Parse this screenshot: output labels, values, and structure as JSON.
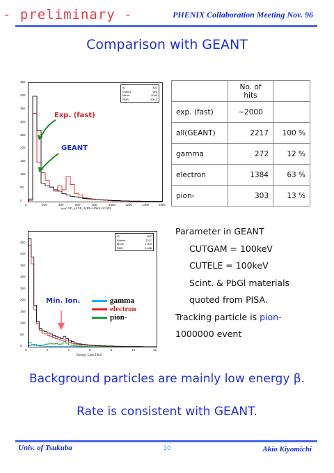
{
  "header": {
    "preliminary": "- preliminary -",
    "meeting": "PHENIX Collaboration Meeting  Nov. 96",
    "colors": {
      "accent": "#1f2fd6",
      "prelim": "#e8384e",
      "rule": "#4a66e8"
    }
  },
  "title": "Comparison with GEANT",
  "chart_data": [
    {
      "type": "bar",
      "title": "",
      "xlabel": "eyeCAD_xAXE_A(ID=2:PbGl:GCOP)",
      "ylabel": "",
      "xlim": [
        0,
        1600
      ],
      "ylim": [
        0,
        450
      ],
      "x_ticks": [
        "0",
        "200",
        "400",
        "600",
        "800",
        "1000",
        "1200",
        "1400",
        "1600"
      ],
      "y_ticks": [
        "0",
        "50",
        "100",
        "150",
        "200",
        "250",
        "300",
        "350",
        "400",
        "450"
      ],
      "stats": [
        [
          "ID",
          "402"
        ],
        [
          "Entries",
          "996"
        ],
        [
          "Mean",
          "2000"
        ],
        [
          "RMS",
          "205.2"
        ]
      ],
      "annotations": [
        "Exp. (fast)",
        "GEANT"
      ],
      "series": [
        {
          "name": "",
          "color": "#e02020",
          "bin_width": 50,
          "values": [
            5,
            335,
            150,
            110,
            80,
            55,
            40,
            60,
            45,
            95,
            65,
            30,
            25,
            15,
            12,
            10,
            8,
            6,
            5,
            4,
            3,
            3,
            2,
            2,
            1,
            1,
            1,
            0,
            1,
            0,
            0,
            0
          ]
        },
        {
          "name": "",
          "color": "#111111",
          "bin_width": 50,
          "values": [
            10,
            400,
            270,
            70,
            60,
            55,
            45,
            40,
            30,
            25,
            20,
            18,
            15,
            12,
            10,
            9,
            8,
            7,
            6,
            5,
            4,
            4,
            3,
            3,
            2,
            2,
            2,
            1,
            1,
            1,
            1,
            1
          ]
        }
      ]
    },
    {
      "type": "bar",
      "title": "",
      "xlabel": "Energy Loss  10e2",
      "ylabel": "",
      "xlim": [
        0,
        12
      ],
      "ylim": [
        0,
        500
      ],
      "x_ticks": [
        "0",
        "2",
        "4",
        "6",
        "8",
        "10",
        "12"
      ],
      "y_ticks": [
        "0",
        "50",
        "100",
        "150",
        "200",
        "250",
        "300",
        "350",
        "400",
        "450"
      ],
      "stats": [
        [
          "ID",
          "602"
        ],
        [
          "Entries",
          "2217"
        ],
        [
          "Mean",
          "1.909"
        ],
        [
          "RMS",
          "2.468"
        ]
      ],
      "annotations": [
        "Min. Ion."
      ],
      "series": [
        {
          "name": "gamma",
          "color": "#22aaff",
          "bin_width": 0.25,
          "values": [
            20,
            10,
            5,
            4,
            3,
            3,
            2,
            2,
            2,
            2,
            1,
            1,
            1,
            1,
            1,
            1,
            1,
            1,
            1,
            0,
            0,
            0,
            0,
            0,
            0,
            0,
            0,
            0,
            0,
            0,
            0,
            0,
            0,
            0,
            0,
            0,
            0,
            0,
            0,
            0,
            0,
            0,
            0,
            0,
            0,
            0,
            0,
            0
          ]
        },
        {
          "name": "electron",
          "color": "#e02020",
          "bin_width": 0.25,
          "values": [
            440,
            360,
            160,
            100,
            70,
            60,
            55,
            50,
            45,
            40,
            35,
            30,
            28,
            30,
            25,
            20,
            15,
            12,
            10,
            9,
            8,
            7,
            6,
            5,
            5,
            4,
            4,
            3,
            3,
            3,
            2,
            2,
            2,
            2,
            1,
            1,
            1,
            1,
            1,
            1,
            1,
            1,
            0,
            0,
            0,
            0,
            0,
            0
          ]
        },
        {
          "name": "pion-",
          "color": "#18a040",
          "bin_width": 0.25,
          "values": [
            5,
            8,
            10,
            8,
            6,
            8,
            10,
            12,
            15,
            12,
            14,
            10,
            12,
            22,
            15,
            8,
            6,
            4,
            3,
            3,
            2,
            2,
            1,
            1,
            1,
            1,
            1,
            0,
            0,
            0,
            0,
            0,
            0,
            0,
            0,
            0,
            0,
            0,
            0,
            0,
            0,
            0,
            0,
            0,
            0,
            0,
            0,
            0
          ]
        },
        {
          "name": "",
          "color": "#111111",
          "bin_width": 0.25,
          "values": [
            470,
            390,
            180,
            110,
            80,
            70,
            65,
            60,
            55,
            50,
            45,
            40,
            35,
            45,
            35,
            28,
            22,
            16,
            13,
            12,
            10,
            9,
            8,
            6,
            6,
            5,
            5,
            4,
            4,
            3,
            3,
            3,
            2,
            2,
            2,
            1,
            1,
            1,
            1,
            1,
            1,
            1,
            1,
            0,
            0,
            0,
            0,
            0
          ]
        }
      ]
    }
  ],
  "table": {
    "header": [
      "",
      "No. of hits",
      ""
    ],
    "rows": [
      [
        "exp.  (fast)",
        "~2000",
        ""
      ],
      [
        "all(GEANT)",
        "2217",
        "100 %"
      ],
      [
        "gamma",
        "272",
        "12 %"
      ],
      [
        "electron",
        "1384",
        "63 %"
      ],
      [
        "pion-",
        "303",
        "13 %"
      ]
    ]
  },
  "params": {
    "heading": "Parameter in GEANT",
    "cutgam": "CUTGAM = 100keV",
    "cutele": "CUTELE  = 100keV",
    "scint1": "Scint. & PbGl materials",
    "scint2": "quoted from PISA.",
    "tracking_prefix": "Tracking particle is ",
    "tracking_particle": "pion-",
    "events": "1000000 event"
  },
  "conclusion": {
    "line1": "Background particles are mainly low energy β.",
    "line2": "Rate is consistent with GEANT."
  },
  "footer": {
    "left": "Univ. of Tsukuba",
    "page": "10",
    "right": "Akio Kiyomichi"
  }
}
